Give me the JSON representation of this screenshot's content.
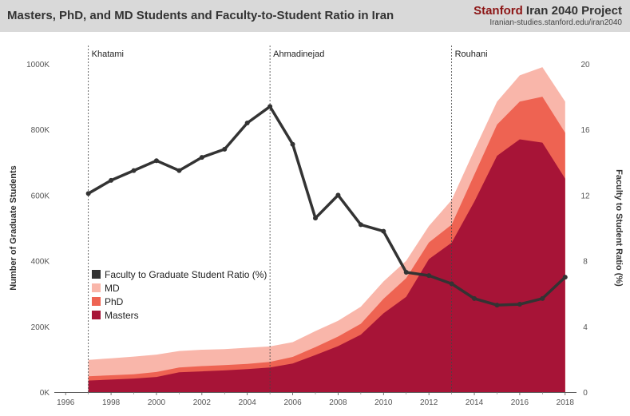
{
  "header": {
    "title": "Masters, PhD, and MD Students and Faculty-to-Student Ratio in Iran",
    "brand_primary": "Stanford",
    "brand_secondary": "Iran 2040 Project",
    "brand_url": "Iranian-studies.stanford.edu/iran2040"
  },
  "colors": {
    "masters": "#a71437",
    "phd": "#ee6352",
    "md": "#f9b6aa",
    "ratio_line": "#333333",
    "header_bg": "#d9d9d9",
    "brand_accent": "#8c1515"
  },
  "chart_data": {
    "type": "area",
    "title": "Masters, PhD, and MD Students and Faculty-to-Student Ratio in Iran",
    "x": [
      1997,
      1998,
      1999,
      2000,
      2001,
      2002,
      2003,
      2004,
      2005,
      2006,
      2007,
      2008,
      2009,
      2010,
      2011,
      2012,
      2013,
      2014,
      2015,
      2016,
      2017,
      2018
    ],
    "xlim": [
      1995.5,
      2018.5
    ],
    "x_ticks": [
      "1996",
      "1998",
      "2000",
      "2002",
      "2004",
      "2006",
      "2008",
      "2010",
      "2012",
      "2014",
      "2016",
      "2018"
    ],
    "ylabel_left": "Number of Graduate Students",
    "ylabel_right": "Faculty to Student Ratio (%)",
    "ylim_left": [
      0,
      1000000
    ],
    "ylim_right": [
      0,
      20
    ],
    "y_ticks_left": [
      "0K",
      "200K",
      "400K",
      "600K",
      "800K",
      "1000K"
    ],
    "y_ticks_right": [
      "0",
      "4",
      "8",
      "12",
      "16",
      "20"
    ],
    "series": [
      {
        "name": "Masters",
        "kind": "stacked-area",
        "values": [
          35000,
          38000,
          41000,
          46000,
          60000,
          63000,
          66000,
          70000,
          75000,
          87000,
          113000,
          140000,
          175000,
          240000,
          290000,
          405000,
          455000,
          580000,
          720000,
          770000,
          760000,
          650000
        ]
      },
      {
        "name": "PhD",
        "kind": "stacked-area",
        "values": [
          13000,
          13000,
          13000,
          15000,
          15000,
          16000,
          16000,
          16000,
          17000,
          20000,
          24000,
          29000,
          33000,
          44000,
          57000,
          51000,
          55000,
          82000,
          95000,
          115000,
          140000,
          140000
        ]
      },
      {
        "name": "MD",
        "kind": "stacked-area",
        "values": [
          50000,
          52000,
          54000,
          53000,
          50000,
          50000,
          49000,
          49000,
          47000,
          45000,
          49000,
          48000,
          52000,
          53000,
          53000,
          50000,
          75000,
          75000,
          70000,
          80000,
          90000,
          95000
        ]
      },
      {
        "name": "Faculty to Graduate Student Ratio (%)",
        "kind": "line",
        "axis": "right",
        "values": [
          12.1,
          12.9,
          13.5,
          14.1,
          13.5,
          14.3,
          14.8,
          16.4,
          17.4,
          15.1,
          10.6,
          12.0,
          10.2,
          9.8,
          7.3,
          7.1,
          6.6,
          5.7,
          5.3,
          5.35,
          5.7,
          7.0
        ]
      }
    ],
    "annotations": [
      {
        "label": "Khatami",
        "x": 1997
      },
      {
        "label": "Ahmadinejad",
        "x": 2005
      },
      {
        "label": "Rouhani",
        "x": 2013
      }
    ],
    "legend_order": [
      "Faculty to Graduate Student Ratio (%)",
      "MD",
      "PhD",
      "Masters"
    ],
    "legend_position": "center-left",
    "grid": false
  }
}
